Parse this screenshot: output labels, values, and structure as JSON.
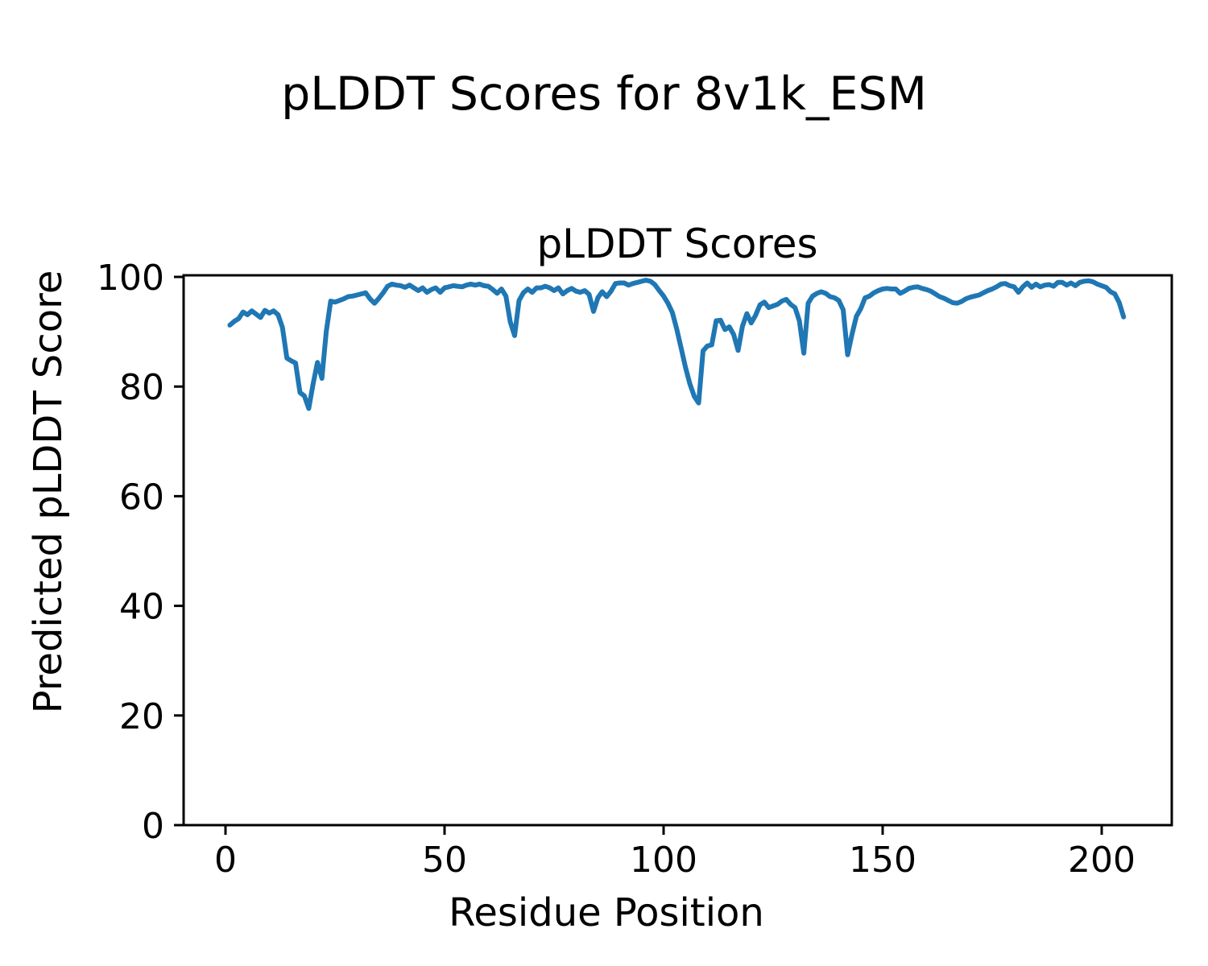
{
  "chart_data": {
    "type": "line",
    "figure_title": "pLDDT Scores for 8v1k_ESM",
    "axes_title": "pLDDT Scores",
    "xlabel": "Residue Position",
    "ylabel": "Predicted pLDDT Score",
    "x_ticks": [
      0,
      50,
      100,
      150,
      200
    ],
    "y_ticks": [
      0,
      20,
      40,
      60,
      80,
      100
    ],
    "xlim": [
      -9.6,
      216
    ],
    "ylim": [
      0,
      100.3
    ],
    "grid": false,
    "legend": "none",
    "line_color": "#1f77b4",
    "background_color": "#ffffff",
    "series": [
      {
        "name": "pLDDT",
        "x_start": 1,
        "x_step": 1,
        "values": [
          91.2,
          91.9,
          92.4,
          93.6,
          93.1,
          93.8,
          93.2,
          92.6,
          93.9,
          93.4,
          93.8,
          93.1,
          90.8,
          85.2,
          84.7,
          84.3,
          78.9,
          78.3,
          76.0,
          80.5,
          84.4,
          81.5,
          90.0,
          95.6,
          95.4,
          95.7,
          96.0,
          96.4,
          96.5,
          96.7,
          96.9,
          97.1,
          96.0,
          95.2,
          96.1,
          97.1,
          98.3,
          98.7,
          98.5,
          98.4,
          98.1,
          98.5,
          98.0,
          97.5,
          98.0,
          97.2,
          97.7,
          98.0,
          97.2,
          98.0,
          98.2,
          98.4,
          98.3,
          98.2,
          98.5,
          98.7,
          98.5,
          98.7,
          98.4,
          98.3,
          97.7,
          97.0,
          97.8,
          96.5,
          91.8,
          89.3,
          95.7,
          97.1,
          97.8,
          97.2,
          98.0,
          98.0,
          98.3,
          98.0,
          97.5,
          98.0,
          96.9,
          97.5,
          97.9,
          97.4,
          97.2,
          97.5,
          96.8,
          93.7,
          96.2,
          97.3,
          96.4,
          97.4,
          98.8,
          98.9,
          98.9,
          98.5,
          98.8,
          99.0,
          99.2,
          99.4,
          99.2,
          98.6,
          97.5,
          96.5,
          95.2,
          93.5,
          90.5,
          87.0,
          83.5,
          80.5,
          78.2,
          77.0,
          86.5,
          87.4,
          87.6,
          92.0,
          92.1,
          90.4,
          90.9,
          89.5,
          86.6,
          91.0,
          93.3,
          91.6,
          93.0,
          94.9,
          95.4,
          94.4,
          94.7,
          95.0,
          95.6,
          95.9,
          95.0,
          94.4,
          92.0,
          86.1,
          95.2,
          96.5,
          97.0,
          97.3,
          97.0,
          96.4,
          96.2,
          95.7,
          94.0,
          85.8,
          89.5,
          92.8,
          94.2,
          96.2,
          96.5,
          97.1,
          97.5,
          97.8,
          97.9,
          97.8,
          97.8,
          97.0,
          97.4,
          97.9,
          98.1,
          98.2,
          97.9,
          97.7,
          97.4,
          96.9,
          96.4,
          96.1,
          95.7,
          95.3,
          95.2,
          95.5,
          96.0,
          96.3,
          96.5,
          96.7,
          97.1,
          97.5,
          97.8,
          98.2,
          98.7,
          98.8,
          98.4,
          98.2,
          97.2,
          98.2,
          98.9,
          98.1,
          98.7,
          98.2,
          98.5,
          98.6,
          98.3,
          99.0,
          99.0,
          98.5,
          98.9,
          98.4,
          99.0,
          99.2,
          99.3,
          99.1,
          98.7,
          98.4,
          98.1,
          97.3,
          96.9,
          95.3,
          92.7
        ]
      }
    ]
  }
}
